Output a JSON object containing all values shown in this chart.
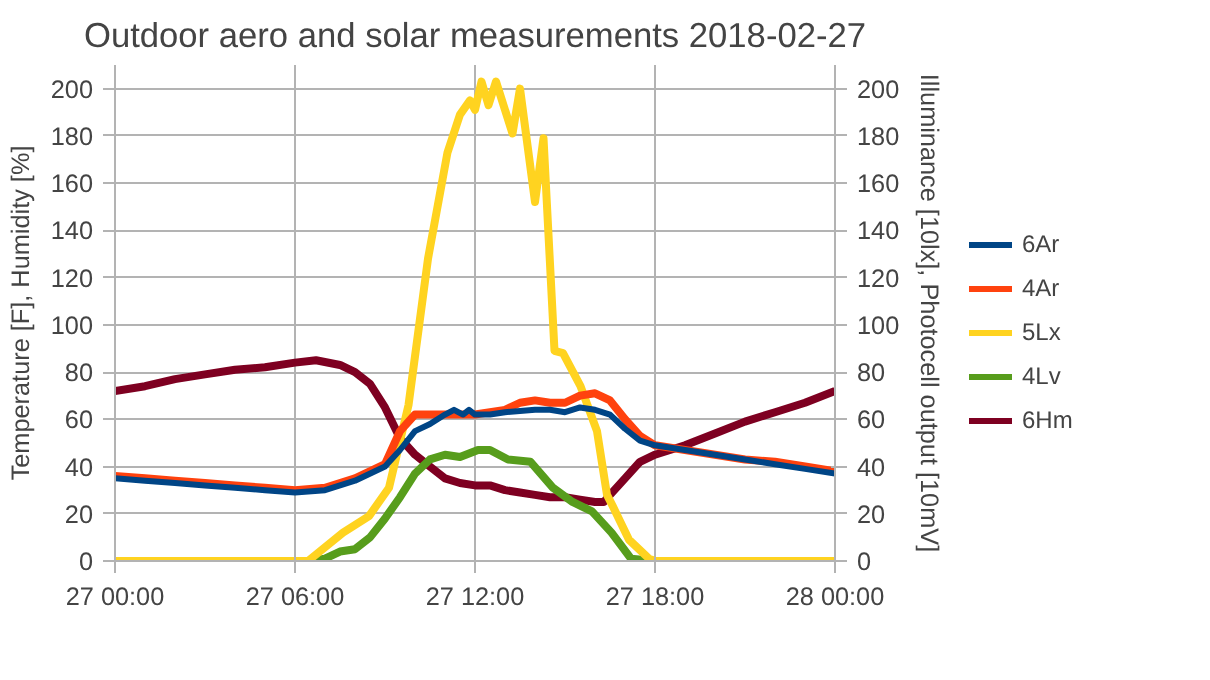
{
  "chart_data": {
    "type": "line",
    "title": "Outdoor aero and solar measurements 2018-02-27",
    "ylabel": "Temperature [F], Humidity [%]",
    "y2label": "Illuminance [10lx], Photocell output [10mV]",
    "xlim": [
      "2018-02-27T00:00",
      "2018-02-28T00:00"
    ],
    "xticks": [
      {
        "value": "2018-02-27T00:00",
        "label": "27 00:00"
      },
      {
        "value": "2018-02-27T06:00",
        "label": "27 06:00"
      },
      {
        "value": "2018-02-27T12:00",
        "label": "27 12:00"
      },
      {
        "value": "2018-02-27T18:00",
        "label": "27 18:00"
      },
      {
        "value": "2018-02-28T00:00",
        "label": "28 00:00"
      }
    ],
    "ylim": [
      0,
      210
    ],
    "yticks": [
      0,
      20,
      40,
      60,
      80,
      100,
      120,
      140,
      160,
      180,
      200
    ],
    "y2lim": [
      0,
      210
    ],
    "y2ticks": [
      0,
      20,
      40,
      60,
      80,
      100,
      120,
      140,
      160,
      180,
      200
    ],
    "grid": true,
    "legend": "right",
    "line_style": "solid",
    "series": [
      {
        "name": "6Ar",
        "color": "#004586",
        "x": [
          "2018-02-27T00:00",
          "2018-02-27T01:00",
          "2018-02-27T02:00",
          "2018-02-27T03:00",
          "2018-02-27T04:00",
          "2018-02-27T05:00",
          "2018-02-27T06:00",
          "2018-02-27T07:00",
          "2018-02-27T08:00",
          "2018-02-27T09:00",
          "2018-02-27T09:30",
          "2018-02-27T10:00",
          "2018-02-27T10:30",
          "2018-02-27T11:00",
          "2018-02-27T11:18",
          "2018-02-27T11:36",
          "2018-02-27T11:48",
          "2018-02-27T12:00",
          "2018-02-27T12:30",
          "2018-02-27T13:00",
          "2018-02-27T14:00",
          "2018-02-27T14:30",
          "2018-02-27T15:00",
          "2018-02-27T15:30",
          "2018-02-27T16:00",
          "2018-02-27T16:30",
          "2018-02-27T17:00",
          "2018-02-27T17:30",
          "2018-02-27T18:00",
          "2018-02-27T19:00",
          "2018-02-27T20:00",
          "2018-02-27T21:00",
          "2018-02-27T22:00",
          "2018-02-27T23:00",
          "2018-02-28T00:00"
        ],
        "values": [
          35,
          34,
          33,
          32,
          31,
          30,
          29,
          30,
          34,
          40,
          47,
          55,
          58,
          62,
          64,
          62,
          64,
          62,
          62,
          63,
          64,
          64,
          63,
          65,
          64,
          62,
          56,
          51,
          49,
          47,
          45,
          43,
          41,
          39,
          37
        ]
      },
      {
        "name": "4Ar",
        "color": "#ff420e",
        "x": [
          "2018-02-27T00:00",
          "2018-02-27T01:00",
          "2018-02-27T02:00",
          "2018-02-27T03:00",
          "2018-02-27T04:00",
          "2018-02-27T05:00",
          "2018-02-27T06:00",
          "2018-02-27T07:00",
          "2018-02-27T08:00",
          "2018-02-27T09:00",
          "2018-02-27T09:30",
          "2018-02-27T10:00",
          "2018-02-27T10:30",
          "2018-02-27T11:00",
          "2018-02-27T12:00",
          "2018-02-27T13:00",
          "2018-02-27T13:30",
          "2018-02-27T14:00",
          "2018-02-27T14:30",
          "2018-02-27T15:00",
          "2018-02-27T15:30",
          "2018-02-27T16:00",
          "2018-02-27T16:30",
          "2018-02-27T17:00",
          "2018-02-27T17:30",
          "2018-02-27T18:00",
          "2018-02-27T19:00",
          "2018-02-27T20:00",
          "2018-02-27T21:00",
          "2018-02-27T22:00",
          "2018-02-27T23:00",
          "2018-02-28T00:00"
        ],
        "values": [
          36,
          35,
          34,
          33,
          32,
          31,
          30,
          31,
          35,
          41,
          55,
          62,
          62,
          62,
          62,
          64,
          67,
          68,
          67,
          67,
          70,
          71,
          68,
          60,
          53,
          49,
          47,
          45,
          43,
          42,
          40,
          38
        ]
      },
      {
        "name": "5Lx",
        "color": "#ffd320",
        "x": [
          "2018-02-27T00:00",
          "2018-02-27T03:00",
          "2018-02-27T06:26",
          "2018-02-27T07:36",
          "2018-02-27T08:28",
          "2018-02-27T09:08",
          "2018-02-27T09:47",
          "2018-02-27T10:26",
          "2018-02-27T11:05",
          "2018-02-27T11:30",
          "2018-02-27T11:50",
          "2018-02-27T12:00",
          "2018-02-27T12:13",
          "2018-02-27T12:27",
          "2018-02-27T12:42",
          "2018-02-27T13:15",
          "2018-02-27T13:30",
          "2018-02-27T14:00",
          "2018-02-27T14:17",
          "2018-02-27T14:39",
          "2018-02-27T14:56",
          "2018-02-27T15:31",
          "2018-02-27T16:04",
          "2018-02-27T16:24",
          "2018-02-27T16:36",
          "2018-02-27T17:08",
          "2018-02-27T17:48",
          "2018-02-27T18:00",
          "2018-02-27T21:00",
          "2018-02-28T00:00"
        ],
        "values": [
          0,
          0,
          0,
          12,
          19,
          31,
          66,
          128,
          173,
          189,
          195,
          191,
          203,
          193,
          203,
          181,
          200,
          152,
          179,
          89,
          88,
          74,
          55,
          28,
          23,
          9,
          1,
          0,
          0,
          0
        ]
      },
      {
        "name": "4Lv",
        "color": "#579d1c",
        "x": [
          "2018-02-27T00:00",
          "2018-02-27T03:00",
          "2018-02-27T06:30",
          "2018-02-27T07:00",
          "2018-02-27T07:30",
          "2018-02-27T08:00",
          "2018-02-27T08:30",
          "2018-02-27T09:00",
          "2018-02-27T09:30",
          "2018-02-27T10:00",
          "2018-02-27T10:30",
          "2018-02-27T11:00",
          "2018-02-27T11:30",
          "2018-02-27T12:06",
          "2018-02-27T12:30",
          "2018-02-27T13:06",
          "2018-02-27T13:51",
          "2018-02-27T14:36",
          "2018-02-27T15:15",
          "2018-02-27T15:54",
          "2018-02-27T16:33",
          "2018-02-27T17:12",
          "2018-02-27T18:00",
          "2018-02-27T21:00",
          "2018-02-28T00:00"
        ],
        "values": [
          0,
          0,
          0,
          1,
          4,
          5,
          10,
          18,
          27,
          37,
          43,
          45,
          44,
          47,
          47,
          43,
          42,
          31,
          25,
          21,
          12,
          1,
          0,
          0,
          0
        ]
      },
      {
        "name": "6Hm",
        "color": "#7e0021",
        "x": [
          "2018-02-27T00:00",
          "2018-02-27T01:00",
          "2018-02-27T02:00",
          "2018-02-27T03:00",
          "2018-02-27T04:00",
          "2018-02-27T05:00",
          "2018-02-27T06:00",
          "2018-02-27T06:42",
          "2018-02-27T07:30",
          "2018-02-27T08:00",
          "2018-02-27T08:30",
          "2018-02-27T09:00",
          "2018-02-27T09:30",
          "2018-02-27T10:00",
          "2018-02-27T10:30",
          "2018-02-27T11:00",
          "2018-02-27T11:30",
          "2018-02-27T12:00",
          "2018-02-27T12:30",
          "2018-02-27T13:00",
          "2018-02-27T13:30",
          "2018-02-27T14:00",
          "2018-02-27T14:30",
          "2018-02-27T15:00",
          "2018-02-27T15:30",
          "2018-02-27T16:00",
          "2018-02-27T16:18",
          "2018-02-27T16:30",
          "2018-02-27T17:00",
          "2018-02-27T17:30",
          "2018-02-27T18:00",
          "2018-02-27T19:00",
          "2018-02-27T20:00",
          "2018-02-27T21:00",
          "2018-02-27T22:00",
          "2018-02-27T23:00",
          "2018-02-28T00:00"
        ],
        "values": [
          72,
          74,
          77,
          79,
          81,
          82,
          84,
          85,
          83,
          80,
          75,
          65,
          52,
          45,
          40,
          35,
          33,
          32,
          32,
          30,
          29,
          28,
          27,
          27,
          26,
          25,
          25,
          28,
          35,
          42,
          45,
          49,
          54,
          59,
          63,
          67,
          72
        ]
      }
    ]
  }
}
